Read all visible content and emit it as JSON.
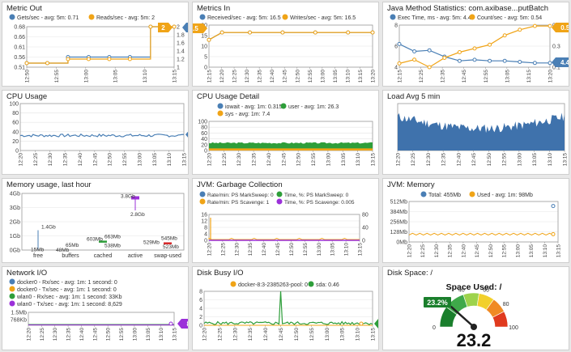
{
  "panels": [
    {
      "id": "metric-out",
      "title": "Metric Out",
      "chart_data": {
        "type": "line",
        "legend": [
          {
            "label": "Gets/sec - avg: 5m: 0.71",
            "color": "#4a7fb5"
          },
          {
            "label": "Reads/sec - avg: 5m: 2",
            "color": "#f0a417"
          }
        ],
        "y_ticks": [
          "0.68",
          "0.66",
          "0.61",
          "0.56",
          "0.51"
        ],
        "y2_ticks": [
          "2",
          "1.8",
          "1.6",
          "1.4",
          "1.2",
          "1"
        ],
        "x_ticks": [
          "12:50",
          "12:55",
          "13:00",
          "13:05",
          "13:10",
          "13:15"
        ],
        "series": [
          {
            "name": "Gets/sec",
            "color": "#4a7fb5",
            "x": [
              0,
              0.14,
              0.28,
              0.42,
              0.56,
              0.7,
              0.84,
              0.92,
              1.0
            ],
            "y": [
              0.53,
              0.53,
              0.56,
              0.56,
              0.56,
              0.56,
              0.71,
              0.71,
              0.71
            ]
          },
          {
            "name": "Reads/sec",
            "color": "#f0a417",
            "x": [
              0,
              0.14,
              0.28,
              0.42,
              0.56,
              0.7,
              0.84,
              0.92,
              1.0
            ],
            "y": [
              1.1,
              1.1,
              1.2,
              1.2,
              1.2,
              1.2,
              2.0,
              2.0,
              2.0
            ]
          }
        ],
        "badges": [
          {
            "text": "1",
            "color": "#4a7fb5"
          },
          {
            "text": "2",
            "color": "#f0a417"
          }
        ]
      }
    },
    {
      "id": "metrics-in",
      "title": "Metrics In",
      "chart_data": {
        "type": "line",
        "legend": [
          {
            "label": "Received/sec - avg: 5m: 16.5",
            "color": "#4a7fb5"
          },
          {
            "label": "Writes/sec - avg: 5m: 16.5",
            "color": "#f0a417"
          }
        ],
        "y_ticks": [
          "20",
          "15",
          "10",
          "5",
          "0"
        ],
        "x_ticks": [
          "12:15",
          "12:20",
          "12:25",
          "12:30",
          "12:35",
          "12:40",
          "12:45",
          "12:50",
          "12:55",
          "13:00",
          "13:05",
          "13:10",
          "13:15",
          "13:20"
        ],
        "series": [
          {
            "name": "Received/sec",
            "color": "#4a7fb5",
            "x": [
              0,
              0.08,
              0.25,
              0.45,
              0.65,
              0.85,
              1.0
            ],
            "y": [
              13,
              16.5,
              16.5,
              16.5,
              16.5,
              16.5,
              16.5
            ]
          },
          {
            "name": "Writes/sec",
            "color": "#f0a417",
            "x": [
              0,
              0.08,
              0.25,
              0.45,
              0.65,
              0.85,
              1.0
            ],
            "y": [
              13,
              16.5,
              16.5,
              16.5,
              16.5,
              16.5,
              16.5
            ]
          }
        ],
        "badges": [
          {
            "text": "16.5",
            "color": "#f0a417"
          }
        ]
      }
    },
    {
      "id": "java-method",
      "title": "Java Method Statistics: com.axibase...putBatch",
      "chart_data": {
        "type": "line",
        "legend": [
          {
            "label": "Exec Time, ms - avg: 5m: 4.4",
            "color": "#4a7fb5"
          },
          {
            "label": "Count/sec - avg: 5m: 0.54",
            "color": "#f0a417"
          }
        ],
        "y_ticks": [
          "8",
          "6",
          "4"
        ],
        "y2_ticks": [
          "0.5",
          "0.3",
          "0.1"
        ],
        "x_ticks": [
          "12:15",
          "12:25",
          "12:35",
          "12:45",
          "12:55",
          "13:05",
          "13:15",
          "13:20"
        ],
        "series": [
          {
            "name": "Exec Time",
            "color": "#4a7fb5",
            "x": [
              0,
              0.1,
              0.2,
              0.3,
              0.4,
              0.5,
              0.6,
              0.7,
              0.8,
              0.9,
              1.0
            ],
            "y": [
              6.2,
              5.5,
              5.6,
              5.0,
              4.6,
              4.7,
              4.6,
              4.6,
              4.5,
              4.4,
              4.4
            ]
          },
          {
            "name": "Count/sec",
            "color": "#f0a417",
            "x": [
              0,
              0.1,
              0.2,
              0.3,
              0.4,
              0.5,
              0.6,
              0.7,
              0.8,
              0.9,
              1.0
            ],
            "y": [
              0.14,
              0.18,
              0.1,
              0.2,
              0.26,
              0.3,
              0.34,
              0.44,
              0.5,
              0.54,
              0.54
            ]
          }
        ],
        "badges": [
          {
            "text": "0.54",
            "color": "#f0a417"
          },
          {
            "text": "4.4",
            "color": "#4a7fb5"
          }
        ]
      }
    },
    {
      "id": "cpu-usage",
      "title": "CPU Usage",
      "chart_data": {
        "type": "line",
        "y_ticks": [
          "100",
          "80",
          "60",
          "40",
          "20",
          "0"
        ],
        "x_ticks": [
          "12:20",
          "12:25",
          "12:30",
          "12:35",
          "12:40",
          "12:45",
          "12:50",
          "12:55",
          "13:00",
          "13:05",
          "13:10",
          "13:15"
        ],
        "badges": [
          {
            "text": "34",
            "color": "#4a7fb5"
          }
        ]
      }
    },
    {
      "id": "cpu-detail",
      "title": "CPU Usage Detail",
      "chart_data": {
        "type": "area",
        "legend": [
          {
            "label": "iowait - avg: 1m: 0.315",
            "color": "#4a7fb5"
          },
          {
            "label": "user - avg: 1m: 26.3",
            "color": "#2e9e3a"
          },
          {
            "label": "sys - avg: 1m: 7.4",
            "color": "#f0a417"
          }
        ],
        "y_ticks": [
          "100",
          "80",
          "60",
          "40",
          "20",
          "0"
        ],
        "x_ticks": [
          "12:20",
          "12:25",
          "12:30",
          "12:35",
          "12:40",
          "12:45",
          "12:50",
          "12:55",
          "13:00",
          "13:05",
          "13:10",
          "13:15"
        ]
      }
    },
    {
      "id": "load-avg",
      "title": "Load Avg 5 min",
      "chart_data": {
        "type": "area",
        "x_ticks": [
          "12:20",
          "12:25",
          "12:30",
          "12:35",
          "12:40",
          "12:45",
          "12:50",
          "12:55",
          "13:00",
          "13:05",
          "13:10",
          "13:15"
        ]
      }
    },
    {
      "id": "memory-usage",
      "title": "Memory usage, last hour",
      "chart_data": {
        "type": "box",
        "y_ticks": [
          "4Gb",
          "3Gb",
          "2Gb",
          "1Gb",
          "0Gb"
        ],
        "categories": [
          "free",
          "buffers",
          "cached",
          "active",
          "swap-used"
        ],
        "labels": [
          "15Mb",
          "1.4Gb",
          "48Mb",
          "65Mb",
          "603Mb",
          "663Mb",
          "538Mb",
          "3.8Gb",
          "2.8Gb",
          "529Mb",
          "545Mb",
          "523Mb"
        ]
      }
    },
    {
      "id": "jvm-gc",
      "title": "JVM: Garbage Collection",
      "chart_data": {
        "type": "line",
        "legend": [
          {
            "label": "Rate/min: PS MarkSweep: 0",
            "color": "#4a7fb5"
          },
          {
            "label": "Time, %: PS MarkSweep: 0",
            "color": "#2e9e3a"
          },
          {
            "label": "Rate/min: PS Scavenge: 1",
            "color": "#f0a417"
          },
          {
            "label": "Time, %: PS Scavenge: 0.005",
            "color": "#9b30d9"
          }
        ],
        "y_ticks": [
          "16",
          "12",
          "8",
          "4",
          "0"
        ],
        "y2_ticks": [
          "80",
          "40",
          "0"
        ],
        "x_ticks": [
          "12:20",
          "12:25",
          "12:30",
          "12:35",
          "12:40",
          "12:45",
          "12:50",
          "12:55",
          "13:00",
          "13:05",
          "13:10",
          "13:15"
        ]
      }
    },
    {
      "id": "jvm-memory",
      "title": "JVM: Memory",
      "chart_data": {
        "type": "line",
        "legend": [
          {
            "label": "Total: 455Mb",
            "color": "#4a7fb5"
          },
          {
            "label": "Used - avg: 1m: 98Mb",
            "color": "#f0a417"
          }
        ],
        "y_ticks": [
          "512Mb",
          "384Mb",
          "256Mb",
          "128Mb",
          "0Mb"
        ],
        "x_ticks": [
          "12:20",
          "12:25",
          "12:30",
          "12:35",
          "12:40",
          "12:45",
          "12:50",
          "12:55",
          "13:00",
          "13:05",
          "13:10",
          "13:15"
        ]
      }
    },
    {
      "id": "network-io",
      "title": "Network I/O",
      "chart_data": {
        "type": "line",
        "legend": [
          {
            "label": "docker0 - Rx/sec - avg: 1m: 1 second: 0",
            "color": "#4a7fb5"
          },
          {
            "label": "docker0 - Tx/sec - avg: 1m: 1 second: 0",
            "color": "#f0a417"
          },
          {
            "label": "wlan0 - Rx/sec - avg: 1m: 1 second: 33Kb",
            "color": "#2e9e3a"
          },
          {
            "label": "wlan0 - Tx/sec - avg: 1m: 1 second: 8,629",
            "color": "#9b30d9"
          }
        ],
        "y_ticks": [
          "1.5Mb",
          "768Kb"
        ],
        "x_ticks": [
          "12:20",
          "12:25",
          "12:30",
          "12:35",
          "12:40",
          "12:45",
          "12:50",
          "12:55",
          "13:00",
          "13:05",
          "13:10",
          "13:15"
        ],
        "badges": [
          {
            "text": "8,629",
            "color": "#9b30d9"
          }
        ]
      }
    },
    {
      "id": "disk-busy",
      "title": "Disk Busy I/O",
      "chart_data": {
        "type": "line",
        "legend": [
          {
            "label": "docker-8:3-2385263-pool: 0",
            "color": "#f0a417"
          },
          {
            "label": "sda: 0.46",
            "color": "#2e9e3a"
          }
        ],
        "y_ticks": [
          "8",
          "6",
          "4",
          "2",
          "0"
        ],
        "x_ticks": [
          "12:20",
          "12:25",
          "12:30",
          "12:35",
          "12:40",
          "12:45",
          "12:50",
          "12:55",
          "13:00",
          "13:05",
          "13:10",
          "13:15"
        ],
        "badges": [
          {
            "text": "0.46",
            "color": "#2e9e3a"
          }
        ]
      }
    },
    {
      "id": "disk-space",
      "title": "Disk Space: /",
      "chart_data": {
        "type": "gauge",
        "label": "Space Used: /",
        "value": 23.2,
        "value_text": "23.2",
        "badge": "23.2%",
        "ticks": [
          "0",
          "20",
          "40",
          "60",
          "80",
          "100"
        ]
      }
    }
  ]
}
